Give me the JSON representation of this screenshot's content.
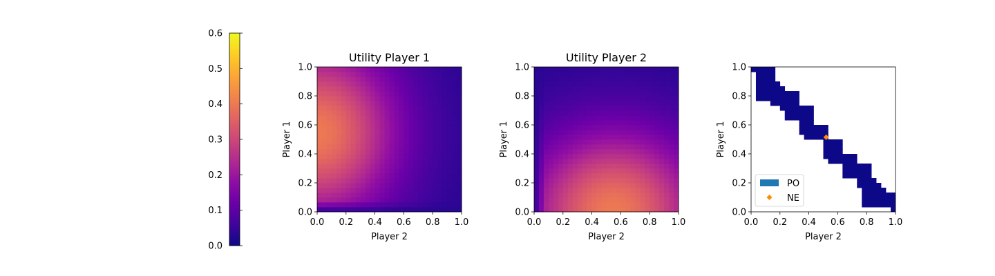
{
  "colorbar": {
    "colormap": "plasma",
    "range": [
      0.0,
      0.6
    ],
    "ticks": [
      "0.0",
      "0.1",
      "0.2",
      "0.3",
      "0.4",
      "0.5",
      "0.6"
    ],
    "tick_values": [
      0.0,
      0.1,
      0.2,
      0.3,
      0.4,
      0.5,
      0.6
    ]
  },
  "chart_data": [
    {
      "type": "heatmap",
      "title": "Utility Player 1",
      "xlabel": "Player 2",
      "ylabel": "Player 1",
      "xlim": [
        0.0,
        1.0
      ],
      "ylim": [
        0.0,
        1.0
      ],
      "xticks": [
        "0.0",
        "0.2",
        "0.4",
        "0.6",
        "0.8",
        "1.0"
      ],
      "yticks": [
        "0.0",
        "0.2",
        "0.4",
        "0.6",
        "0.8",
        "1.0"
      ],
      "colormap": "plasma",
      "vlim": [
        0.0,
        0.6
      ],
      "grid_size": 30,
      "peak_value": 0.37,
      "peak_at": {
        "player2": 0.0,
        "player1": 0.55
      },
      "min_value": 0.03
    },
    {
      "type": "heatmap",
      "title": "Utility Player 2",
      "xlabel": "Player 2",
      "ylabel": "Player 1",
      "xlim": [
        0.0,
        1.0
      ],
      "ylim": [
        0.0,
        1.0
      ],
      "xticks": [
        "0.0",
        "0.2",
        "0.4",
        "0.6",
        "0.8",
        "1.0"
      ],
      "yticks": [
        "0.0",
        "0.2",
        "0.4",
        "0.6",
        "0.8",
        "1.0"
      ],
      "colormap": "plasma",
      "vlim": [
        0.0,
        0.6
      ],
      "grid_size": 30,
      "peak_value": 0.37,
      "peak_at": {
        "player2": 0.55,
        "player1": 0.0
      },
      "min_value": 0.03
    },
    {
      "type": "heatmap",
      "title": "",
      "xlabel": "Player 2",
      "ylabel": "Player 1",
      "xlim": [
        0.0,
        1.0
      ],
      "ylim": [
        0.0,
        1.0
      ],
      "xticks": [
        "0.0",
        "0.2",
        "0.4",
        "0.6",
        "0.8",
        "1.0"
      ],
      "yticks": [
        "0.0",
        "0.2",
        "0.4",
        "0.6",
        "0.8",
        "1.0"
      ],
      "grid_size": 30,
      "po_color": "#0d0887",
      "po_rows": [
        {
          "y0": 0.9667,
          "y1": 1.0,
          "x0": 0.0,
          "x1": 0.1667
        },
        {
          "y0": 0.9333,
          "y1": 0.9667,
          "x0": 0.0333,
          "x1": 0.1667
        },
        {
          "y0": 0.9,
          "y1": 0.9333,
          "x0": 0.0333,
          "x1": 0.1667
        },
        {
          "y0": 0.8667,
          "y1": 0.9,
          "x0": 0.0333,
          "x1": 0.2
        },
        {
          "y0": 0.8333,
          "y1": 0.8667,
          "x0": 0.0333,
          "x1": 0.2333
        },
        {
          "y0": 0.8,
          "y1": 0.8333,
          "x0": 0.0333,
          "x1": 0.3333
        },
        {
          "y0": 0.7667,
          "y1": 0.8,
          "x0": 0.0333,
          "x1": 0.3333
        },
        {
          "y0": 0.7333,
          "y1": 0.7667,
          "x0": 0.1333,
          "x1": 0.3333
        },
        {
          "y0": 0.7,
          "y1": 0.7333,
          "x0": 0.2,
          "x1": 0.4333
        },
        {
          "y0": 0.6667,
          "y1": 0.7,
          "x0": 0.2333,
          "x1": 0.4333
        },
        {
          "y0": 0.6333,
          "y1": 0.6667,
          "x0": 0.2333,
          "x1": 0.4333
        },
        {
          "y0": 0.6,
          "y1": 0.6333,
          "x0": 0.3333,
          "x1": 0.4333
        },
        {
          "y0": 0.5667,
          "y1": 0.6,
          "x0": 0.3333,
          "x1": 0.5333
        },
        {
          "y0": 0.5333,
          "y1": 0.5667,
          "x0": 0.3333,
          "x1": 0.5333
        },
        {
          "y0": 0.5,
          "y1": 0.5333,
          "x0": 0.3667,
          "x1": 0.5333
        },
        {
          "y0": 0.4667,
          "y1": 0.5,
          "x0": 0.5,
          "x1": 0.6333
        },
        {
          "y0": 0.4333,
          "y1": 0.4667,
          "x0": 0.5,
          "x1": 0.6333
        },
        {
          "y0": 0.4,
          "y1": 0.4333,
          "x0": 0.5,
          "x1": 0.6333
        },
        {
          "y0": 0.3667,
          "y1": 0.4,
          "x0": 0.5,
          "x1": 0.7333
        },
        {
          "y0": 0.3333,
          "y1": 0.3667,
          "x0": 0.5333,
          "x1": 0.7333
        },
        {
          "y0": 0.3,
          "y1": 0.3333,
          "x0": 0.6333,
          "x1": 0.8333
        },
        {
          "y0": 0.2667,
          "y1": 0.3,
          "x0": 0.6333,
          "x1": 0.8333
        },
        {
          "y0": 0.2333,
          "y1": 0.2667,
          "x0": 0.6333,
          "x1": 0.8333
        },
        {
          "y0": 0.2,
          "y1": 0.2333,
          "x0": 0.7333,
          "x1": 0.8667
        },
        {
          "y0": 0.1667,
          "y1": 0.2,
          "x0": 0.7333,
          "x1": 0.9
        },
        {
          "y0": 0.1333,
          "y1": 0.1667,
          "x0": 0.7667,
          "x1": 0.9333
        },
        {
          "y0": 0.1,
          "y1": 0.1333,
          "x0": 0.7667,
          "x1": 1.0
        },
        {
          "y0": 0.0667,
          "y1": 0.1,
          "x0": 0.7667,
          "x1": 1.0
        },
        {
          "y0": 0.0333,
          "y1": 0.0667,
          "x0": 0.7667,
          "x1": 1.0
        },
        {
          "y0": 0.0,
          "y1": 0.0333,
          "x0": 0.9667,
          "x1": 1.0
        }
      ],
      "ne_point": {
        "x": 0.52,
        "y": 0.515
      },
      "ne_color": "#ff8c00",
      "legend": {
        "placement": "lower-left",
        "entries": [
          {
            "label": "PO",
            "color": "#1f77b4",
            "marker": "patch"
          },
          {
            "label": "NE",
            "color": "#ff8c00",
            "marker": "diamond"
          }
        ]
      }
    }
  ]
}
